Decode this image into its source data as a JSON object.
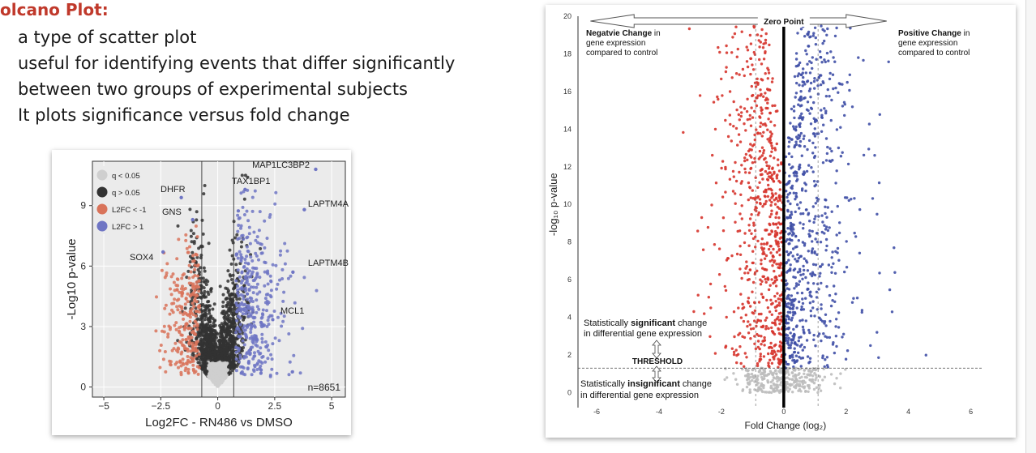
{
  "slide": {
    "heading": "olcano Plot:",
    "bullets": [
      "a type of scatter plot",
      "useful for identifying events that differ significantly",
      "between two groups of experimental subjects",
      "It plots significance versus fold change"
    ]
  },
  "colors": {
    "heading": "#c0392b",
    "significant_up": "#6f75c4",
    "significant_down": "#d9735a",
    "not_significant": "#333333",
    "q_insig": "#cfcfcf",
    "right_up": "#3f4fa6",
    "right_down": "#d6342c",
    "right_insig": "#bdbdbd"
  },
  "chart_data": [
    {
      "type": "scatter",
      "title": "",
      "xlabel": "Log2FC - RN486 vs DMSO",
      "ylabel": "-Log10 p-value",
      "xlim": [
        -5.5,
        5.6
      ],
      "ylim": [
        -0.5,
        11.2
      ],
      "x_ticks": [
        -5,
        -2.5,
        0,
        2.5,
        5
      ],
      "x_tick_labels": [
        "−5",
        "−2.5",
        "0",
        "2.5",
        "5"
      ],
      "y_ticks": [
        0,
        3,
        6,
        9
      ],
      "y_tick_labels": [
        "0",
        "3",
        "6",
        "9"
      ],
      "grid": true,
      "legend_position": "top-left",
      "legend": [
        "q < 0.05",
        "q > 0.05",
        "L2FC < -1",
        "L2FC > 1"
      ],
      "vlines": [
        -0.7,
        0.7
      ],
      "annotation": "n=8651",
      "gene_labels": [
        {
          "name": "MAP1LC3BP2",
          "x": 4.3,
          "y": 10.8
        },
        {
          "name": "TAX1BP1",
          "x": 1.2,
          "y": 9.8
        },
        {
          "name": "DHFR",
          "x": -1.6,
          "y": 9.4
        },
        {
          "name": "LAPTM4A",
          "x": 3.8,
          "y": 8.8
        },
        {
          "name": "GNS",
          "x": -1.1,
          "y": 8.3
        },
        {
          "name": "SOX4",
          "x": -2.4,
          "y": 6.7
        },
        {
          "name": "LAPTM4B",
          "x": 3.3,
          "y": 5.7
        },
        {
          "name": "MCL1",
          "x": 1.9,
          "y": 3.2
        }
      ]
    },
    {
      "type": "scatter",
      "title": "",
      "xlabel": "Fold Change (log₂)",
      "ylabel": "-log₁₀ p-value",
      "xlim": [
        -6.6,
        6.4
      ],
      "ylim": [
        -0.8,
        20
      ],
      "x_ticks": [
        -6,
        -4,
        -2,
        0,
        2,
        4,
        6
      ],
      "x_tick_labels": [
        "-6",
        "-4",
        "-2",
        "0",
        "2",
        "4",
        "6"
      ],
      "y_ticks": [
        0,
        2,
        4,
        6,
        8,
        10,
        12,
        14,
        16,
        18,
        20
      ],
      "y_tick_labels": [
        "0",
        "2",
        "4",
        "6",
        "8",
        "10",
        "12",
        "14",
        "16",
        "18",
        "20"
      ],
      "grid": false,
      "threshold_y": 1.3,
      "fc_lines": [
        -0.9,
        1.1
      ],
      "annotations": {
        "zero_point": "Zero Point",
        "threshold": "THRESHOLD",
        "neg_bold": "Negatvie Change",
        "neg_tail1": " in",
        "neg_line2": "gene expression",
        "neg_line3": "compared to control",
        "pos_bold": "Positive Change",
        "pos_tail1": " in",
        "pos_line2": "gene expression",
        "pos_line3": "compared to control",
        "sig_pre": "Statistically ",
        "sig_bold": "significant",
        "sig_post": " change",
        "sig_line2": "in differential gene expression",
        "insig_pre": "Statistically ",
        "insig_bold": "insignificant",
        "insig_post": " change",
        "insig_line2": "in differential gene expression"
      }
    }
  ]
}
